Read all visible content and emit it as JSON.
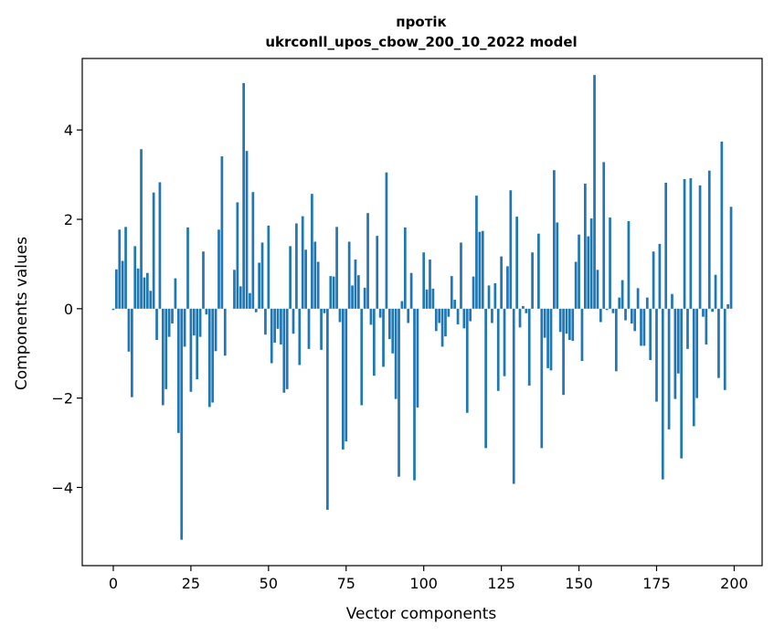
{
  "chart_data": {
    "type": "bar",
    "title": "протік",
    "subtitle": "ukrconll_upos_cbow_200_10_2022 model",
    "xlabel": "Vector components",
    "ylabel": "Components values",
    "xlim": [
      -10,
      209
    ],
    "ylim": [
      -5.75,
      5.6
    ],
    "xticks": [
      0,
      25,
      50,
      75,
      100,
      125,
      150,
      175,
      200
    ],
    "yticks": [
      -4,
      -2,
      0,
      2,
      4
    ],
    "xtick_labels": [
      "0",
      "25",
      "50",
      "75",
      "100",
      "125",
      "150",
      "175",
      "200"
    ],
    "ytick_labels": [
      "−4",
      "−2",
      "0",
      "2",
      "4"
    ],
    "bar_color": "#1f77b4",
    "grid": false,
    "x": [
      0,
      1,
      2,
      3,
      4,
      5,
      6,
      7,
      8,
      9,
      10,
      11,
      12,
      13,
      14,
      15,
      16,
      17,
      18,
      19,
      20,
      21,
      22,
      23,
      24,
      25,
      26,
      27,
      28,
      29,
      30,
      31,
      32,
      33,
      34,
      35,
      36,
      37,
      38,
      39,
      40,
      41,
      42,
      43,
      44,
      45,
      46,
      47,
      48,
      49,
      50,
      51,
      52,
      53,
      54,
      55,
      56,
      57,
      58,
      59,
      60,
      61,
      62,
      63,
      64,
      65,
      66,
      67,
      68,
      69,
      70,
      71,
      72,
      73,
      74,
      75,
      76,
      77,
      78,
      79,
      80,
      81,
      82,
      83,
      84,
      85,
      86,
      87,
      88,
      89,
      90,
      91,
      92,
      93,
      94,
      95,
      96,
      97,
      98,
      99,
      100,
      101,
      102,
      103,
      104,
      105,
      106,
      107,
      108,
      109,
      110,
      111,
      112,
      113,
      114,
      115,
      116,
      117,
      118,
      119,
      120,
      121,
      122,
      123,
      124,
      125,
      126,
      127,
      128,
      129,
      130,
      131,
      132,
      133,
      134,
      135,
      136,
      137,
      138,
      139,
      140,
      141,
      142,
      143,
      144,
      145,
      146,
      147,
      148,
      149,
      150,
      151,
      152,
      153,
      154,
      155,
      156,
      157,
      158,
      159,
      160,
      161,
      162,
      163,
      164,
      165,
      166,
      167,
      168,
      169,
      170,
      171,
      172,
      173,
      174,
      175,
      176,
      177,
      178,
      179,
      180,
      181,
      182,
      183,
      184,
      185,
      186,
      187,
      188,
      189,
      190,
      191,
      192,
      193,
      194,
      195,
      196,
      197,
      198,
      199
    ],
    "values": [
      -0.03,
      0.88,
      1.77,
      1.07,
      1.83,
      -0.96,
      -1.98,
      1.4,
      0.9,
      3.57,
      0.7,
      0.8,
      0.4,
      2.6,
      -0.7,
      2.83,
      -2.16,
      -1.8,
      -0.63,
      -0.33,
      0.68,
      -2.78,
      -5.17,
      -0.85,
      1.82,
      -1.86,
      -0.6,
      -1.58,
      -0.63,
      1.28,
      -0.13,
      -2.2,
      -2.1,
      -0.95,
      1.77,
      3.41,
      -1.05,
      0.0,
      0.0,
      0.87,
      2.38,
      0.5,
      5.05,
      3.53,
      0.35,
      2.61,
      -0.08,
      1.03,
      1.48,
      -0.58,
      1.86,
      -1.22,
      -0.76,
      -0.45,
      -0.8,
      -1.88,
      -1.8,
      1.4,
      -0.56,
      1.91,
      -1.26,
      2.07,
      1.32,
      -0.9,
      2.57,
      1.5,
      1.05,
      -0.92,
      -0.1,
      -4.5,
      0.73,
      0.72,
      1.83,
      -0.3,
      -3.15,
      -2.97,
      1.5,
      0.52,
      1.1,
      0.75,
      -2.16,
      0.47,
      2.14,
      -0.36,
      -1.5,
      1.63,
      -0.2,
      -1.3,
      3.05,
      -0.68,
      -1.0,
      -2.02,
      -3.76,
      0.17,
      1.82,
      -0.32,
      0.8,
      -3.84,
      -2.21,
      0.0,
      1.26,
      0.43,
      1.1,
      0.45,
      -0.5,
      -0.32,
      -0.85,
      -0.62,
      -0.18,
      0.73,
      0.2,
      -0.35,
      1.48,
      -0.44,
      -2.33,
      -0.28,
      0.72,
      2.53,
      1.72,
      1.74,
      -3.12,
      0.52,
      -0.32,
      0.57,
      -1.84,
      1.17,
      -1.51,
      0.95,
      2.65,
      -3.92,
      2.06,
      -0.42,
      0.06,
      -0.1,
      -1.72,
      1.26,
      0.0,
      1.68,
      -3.12,
      -0.65,
      -1.33,
      -1.38,
      3.1,
      1.93,
      -0.52,
      -1.93,
      -0.56,
      -0.7,
      -0.72,
      1.05,
      1.66,
      -1.17,
      2.8,
      1.62,
      2.02,
      5.23,
      0.87,
      -0.3,
      3.28,
      -0.03,
      2.04,
      -0.1,
      -1.4,
      0.25,
      0.64,
      -0.26,
      1.96,
      -0.33,
      -0.5,
      0.46,
      -0.83,
      -0.83,
      0.25,
      -1.15,
      1.28,
      -2.08,
      1.45,
      -3.82,
      2.82,
      -2.7,
      0.33,
      -2.02,
      -1.45,
      -3.35,
      2.9,
      -0.9,
      2.92,
      -2.63,
      -2.0,
      2.76,
      -0.18,
      -0.8,
      3.09,
      -0.07,
      0.76,
      -1.55,
      3.74,
      -1.82,
      0.1,
      2.28
    ]
  }
}
